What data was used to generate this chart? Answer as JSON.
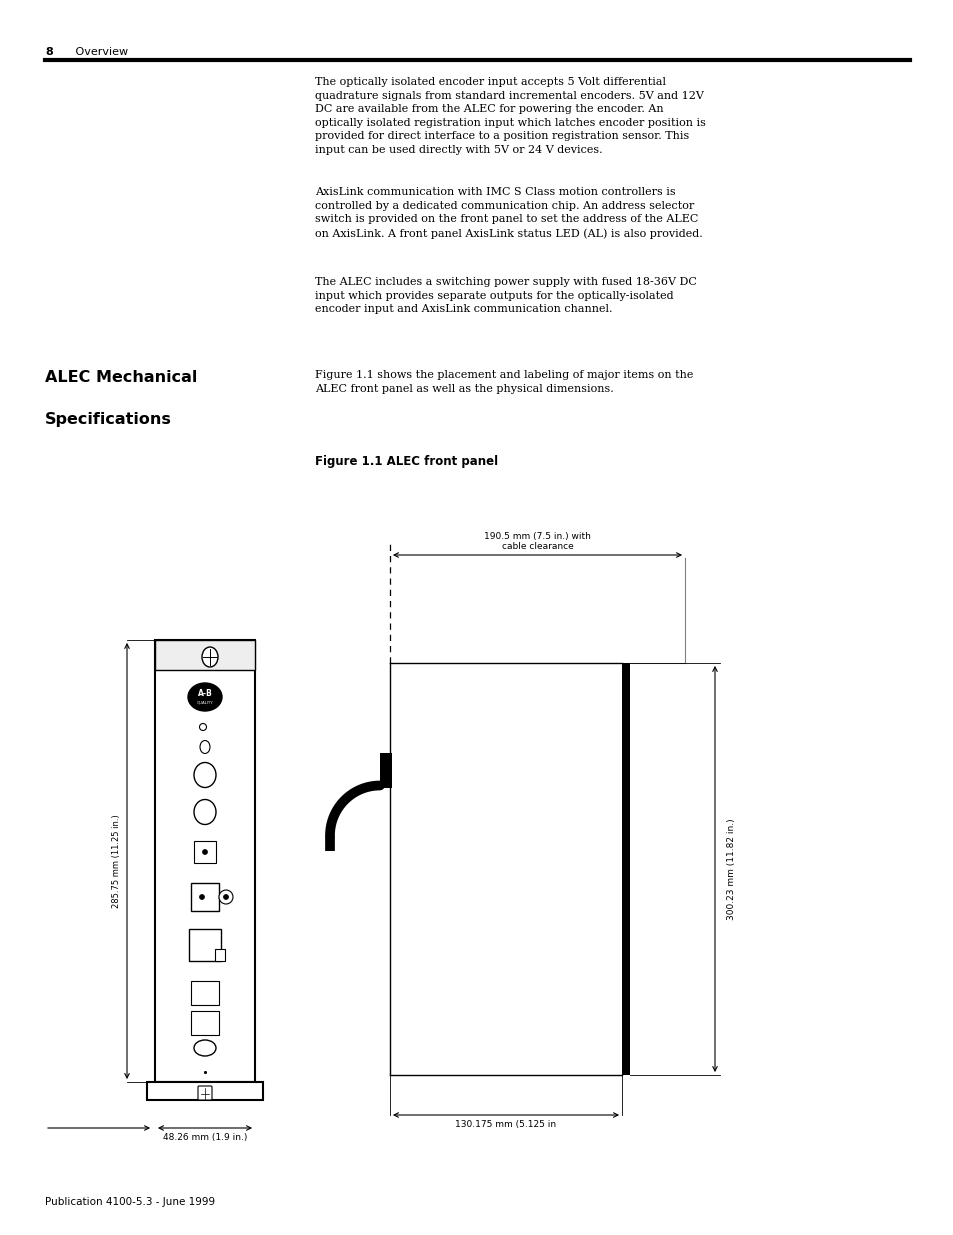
{
  "page_width": 9.54,
  "page_height": 12.35,
  "bg_color": "#ffffff",
  "header_text_bold": "8",
  "header_text_normal": "   Overview",
  "footer_text": "Publication 4100-5.3 - June 1999",
  "para1": "The optically isolated encoder input accepts 5 Volt differential\nquadrature signals from standard incremental encoders. 5V and 12V\nDC are available from the ALEC for powering the encoder. An\noptically isolated registration input which latches encoder position is\nprovided for direct interface to a position registration sensor. This\ninput can be used directly with 5V or 24 V devices.",
  "para2": "AxisLink communication with IMC S Class motion controllers is\ncontrolled by a dedicated communication chip. An address selector\nswitch is provided on the front panel to set the address of the ALEC\non AxisLink. A front panel AxisLink status LED (AL) is also provided.",
  "para3": "The ALEC includes a switching power supply with fused 18-36V DC\ninput which provides separate outputs for the optically-isolated\nencoder input and AxisLink communication channel.",
  "section_title_line1": "ALEC Mechanical",
  "section_title_line2": "Specifications",
  "intro_text": "Figure 1.1 shows the placement and labeling of major items on the\nALEC front panel as well as the physical dimensions.",
  "figure_title": "Figure 1.1 ALEC front panel",
  "dim_width_text": "190.5 mm (7.5 in.) with\ncable clearance",
  "dim_height_text": "300.23 mm (11.82 in.)",
  "dim_depth_text": "130.175 mm (5.125 in",
  "dim_panel_text": "48.26 mm (1.9 in.)",
  "dim_panel_height_text": "285.75 mm (11.25 in.)"
}
